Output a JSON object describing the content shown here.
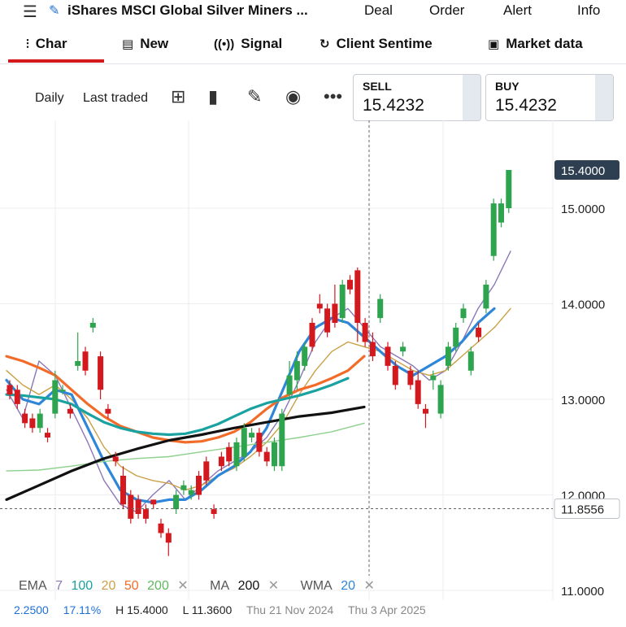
{
  "header": {
    "instrument_title": "iShares MSCI Global Silver Miners ...",
    "nav": [
      "Deal",
      "Order",
      "Alert",
      "Info"
    ]
  },
  "tabs": [
    {
      "label": "Char",
      "icon": "candlestick-icon"
    },
    {
      "label": "New",
      "icon": "newspaper-icon"
    },
    {
      "label": "Signal",
      "icon": "broadcast-icon"
    },
    {
      "label": "Client Sentime",
      "icon": "sentiment-icon"
    },
    {
      "label": "Market data",
      "icon": "clipboard-icon"
    }
  ],
  "toolbar": {
    "interval": "Daily",
    "price_type": "Last traded"
  },
  "quote": {
    "sell_label": "SELL",
    "sell_value": "15.4232",
    "buy_label": "BUY",
    "buy_value": "15.4232"
  },
  "indicators": {
    "ema_label": "EMA",
    "ema_periods": [
      "7",
      "100",
      "20",
      "50",
      "200"
    ],
    "ma_label": "MA",
    "ma_period": "200",
    "wma_label": "WMA",
    "wma_period": "20"
  },
  "stats": {
    "value": "2.2500",
    "change_pct": "17.11%",
    "high": "H 15.4000",
    "low": "L 11.3600",
    "date_a": "Thu 21 Nov 2024",
    "date_b": "Thu 3 Apr 2025"
  },
  "colors": {
    "up": "#2fa44f",
    "down": "#d3181e",
    "ema7": "#8b77b8",
    "ema100": "#19a2a0",
    "ema20": "#caa046",
    "ema50": "#f26b28",
    "ema200": "#8ed08d",
    "ma200": "#111111",
    "wma20": "#2d86d7"
  },
  "chart_data": {
    "type": "candlestick",
    "y_ticks": [
      "15.0000",
      "14.0000",
      "13.0000",
      "12.0000",
      "11.0000"
    ],
    "ylim": [
      10.8,
      15.8
    ],
    "last_price_label": "15.4000",
    "crosshair_price_label": "11.8556",
    "candles": [
      {
        "o": 13.15,
        "c": 13.05,
        "h": 13.2,
        "l": 13.0
      },
      {
        "o": 13.1,
        "c": 12.95,
        "h": 13.15,
        "l": 12.9
      },
      {
        "o": 12.85,
        "c": 12.75,
        "h": 12.9,
        "l": 12.7
      },
      {
        "o": 12.8,
        "c": 12.7,
        "h": 12.85,
        "l": 12.65
      },
      {
        "o": 12.7,
        "c": 12.85,
        "h": 12.9,
        "l": 12.65
      },
      {
        "o": 12.65,
        "c": 12.6,
        "h": 12.7,
        "l": 12.55
      },
      {
        "o": 12.85,
        "c": 13.2,
        "h": 13.3,
        "l": 12.8
      },
      {
        "o": 13.1,
        "c": 13.1,
        "h": 13.15,
        "l": 13.05
      },
      {
        "o": 12.9,
        "c": 12.85,
        "h": 12.95,
        "l": 12.8
      },
      {
        "o": 13.35,
        "c": 13.4,
        "h": 13.7,
        "l": 13.3
      },
      {
        "o": 13.5,
        "c": 13.3,
        "h": 13.55,
        "l": 13.25
      },
      {
        "o": 13.75,
        "c": 13.8,
        "h": 13.85,
        "l": 13.7
      },
      {
        "o": 13.45,
        "c": 13.1,
        "h": 13.5,
        "l": 13.0
      },
      {
        "o": 12.9,
        "c": 12.85,
        "h": 12.95,
        "l": 12.8
      },
      {
        "o": 12.4,
        "c": 12.35,
        "h": 12.45,
        "l": 12.3
      },
      {
        "o": 12.2,
        "c": 11.9,
        "h": 12.3,
        "l": 11.85
      },
      {
        "o": 12.0,
        "c": 11.75,
        "h": 12.05,
        "l": 11.7
      },
      {
        "o": 11.95,
        "c": 11.8,
        "h": 12.0,
        "l": 11.75
      },
      {
        "o": 11.85,
        "c": 11.75,
        "h": 11.9,
        "l": 11.7
      },
      {
        "o": 11.95,
        "c": 11.9,
        "h": 11.95,
        "l": 11.85
      },
      {
        "o": 11.7,
        "c": 11.6,
        "h": 11.75,
        "l": 11.55
      },
      {
        "o": 11.6,
        "c": 11.5,
        "h": 11.65,
        "l": 11.36
      },
      {
        "o": 11.85,
        "c": 12.0,
        "h": 12.05,
        "l": 11.8
      },
      {
        "o": 12.05,
        "c": 12.1,
        "h": 12.15,
        "l": 12.0
      },
      {
        "o": 12.0,
        "c": 12.05,
        "h": 12.1,
        "l": 11.95
      },
      {
        "o": 12.2,
        "c": 12.0,
        "h": 12.25,
        "l": 11.95
      },
      {
        "o": 12.35,
        "c": 12.15,
        "h": 12.4,
        "l": 12.1
      },
      {
        "o": 11.85,
        "c": 11.8,
        "h": 11.9,
        "l": 11.75
      },
      {
        "o": 12.4,
        "c": 12.3,
        "h": 12.45,
        "l": 12.25
      },
      {
        "o": 12.5,
        "c": 12.35,
        "h": 12.55,
        "l": 12.3
      },
      {
        "o": 12.3,
        "c": 12.55,
        "h": 12.6,
        "l": 12.25
      },
      {
        "o": 12.4,
        "c": 12.7,
        "h": 12.75,
        "l": 12.35
      },
      {
        "o": 12.6,
        "c": 12.65,
        "h": 12.7,
        "l": 12.55
      },
      {
        "o": 12.65,
        "c": 12.45,
        "h": 12.7,
        "l": 12.4
      },
      {
        "o": 12.45,
        "c": 12.35,
        "h": 12.5,
        "l": 12.3
      },
      {
        "o": 12.3,
        "c": 12.55,
        "h": 12.6,
        "l": 12.25
      },
      {
        "o": 12.3,
        "c": 12.85,
        "h": 12.9,
        "l": 12.25
      },
      {
        "o": 13.05,
        "c": 13.25,
        "h": 13.4,
        "l": 13.0
      },
      {
        "o": 13.2,
        "c": 13.4,
        "h": 13.5,
        "l": 13.1
      },
      {
        "o": 13.35,
        "c": 13.55,
        "h": 13.6,
        "l": 13.3
      },
      {
        "o": 13.8,
        "c": 13.55,
        "h": 13.85,
        "l": 13.5
      },
      {
        "o": 14.0,
        "c": 13.95,
        "h": 14.1,
        "l": 13.9
      },
      {
        "o": 13.95,
        "c": 13.7,
        "h": 14.0,
        "l": 13.65
      },
      {
        "o": 14.0,
        "c": 13.8,
        "h": 14.2,
        "l": 13.75
      },
      {
        "o": 13.85,
        "c": 14.2,
        "h": 14.25,
        "l": 13.8
      },
      {
        "o": 14.25,
        "c": 14.15,
        "h": 14.3,
        "l": 14.1
      },
      {
        "o": 14.35,
        "c": 13.8,
        "h": 14.38,
        "l": 13.6
      },
      {
        "o": 13.8,
        "c": 13.6,
        "h": 13.85,
        "l": 13.55
      },
      {
        "o": 13.6,
        "c": 13.45,
        "h": 13.7,
        "l": 13.4
      },
      {
        "o": 13.85,
        "c": 14.05,
        "h": 14.1,
        "l": 13.8
      },
      {
        "o": 13.55,
        "c": 13.35,
        "h": 13.6,
        "l": 13.3
      },
      {
        "o": 13.35,
        "c": 13.15,
        "h": 13.4,
        "l": 13.1
      },
      {
        "o": 13.5,
        "c": 13.55,
        "h": 13.6,
        "l": 13.45
      },
      {
        "o": 13.3,
        "c": 13.15,
        "h": 13.35,
        "l": 13.1
      },
      {
        "o": 13.2,
        "c": 12.95,
        "h": 13.3,
        "l": 12.9
      },
      {
        "o": 12.9,
        "c": 12.85,
        "h": 12.95,
        "l": 12.7
      },
      {
        "o": 13.2,
        "c": 13.25,
        "h": 13.3,
        "l": 13.1
      },
      {
        "o": 12.85,
        "c": 13.15,
        "h": 13.2,
        "l": 12.8
      },
      {
        "o": 13.35,
        "c": 13.55,
        "h": 13.6,
        "l": 13.3
      },
      {
        "o": 13.55,
        "c": 13.75,
        "h": 13.8,
        "l": 13.5
      },
      {
        "o": 13.85,
        "c": 13.95,
        "h": 14.0,
        "l": 13.8
      },
      {
        "o": 13.3,
        "c": 13.5,
        "h": 13.55,
        "l": 13.25
      },
      {
        "o": 13.75,
        "c": 13.65,
        "h": 13.8,
        "l": 13.6
      },
      {
        "o": 13.95,
        "c": 14.2,
        "h": 14.25,
        "l": 13.9
      },
      {
        "o": 14.5,
        "c": 15.05,
        "h": 15.1,
        "l": 14.45
      },
      {
        "o": 14.85,
        "c": 15.05,
        "h": 15.1,
        "l": 14.8
      },
      {
        "o": 15.0,
        "c": 15.4,
        "h": 15.4,
        "l": 14.95
      }
    ],
    "series": [
      {
        "name": "EMA 7",
        "values": [
          [
            0,
            13.1
          ],
          [
            10,
            12.8
          ],
          [
            20,
            13.4
          ],
          [
            30,
            13.25
          ],
          [
            40,
            12.9
          ],
          [
            50,
            12.55
          ],
          [
            60,
            12.15
          ],
          [
            70,
            11.9
          ],
          [
            80,
            11.82
          ],
          [
            90,
            12.0
          ],
          [
            100,
            12.15
          ],
          [
            110,
            11.95
          ],
          [
            120,
            12.1
          ],
          [
            130,
            12.25
          ],
          [
            140,
            12.35
          ],
          [
            150,
            12.45
          ],
          [
            160,
            12.6
          ],
          [
            170,
            12.85
          ],
          [
            180,
            13.2
          ],
          [
            190,
            13.6
          ],
          [
            200,
            13.85
          ],
          [
            210,
            13.95
          ],
          [
            220,
            13.75
          ],
          [
            230,
            13.55
          ],
          [
            240,
            13.45
          ],
          [
            250,
            13.35
          ],
          [
            260,
            13.2
          ],
          [
            270,
            13.3
          ],
          [
            280,
            13.6
          ],
          [
            290,
            13.95
          ],
          [
            300,
            14.2
          ],
          [
            310,
            14.55
          ]
        ]
      },
      {
        "name": "EMA 20",
        "values": [
          [
            0,
            13.3
          ],
          [
            10,
            13.15
          ],
          [
            20,
            13.05
          ],
          [
            30,
            13.15
          ],
          [
            40,
            13.0
          ],
          [
            50,
            12.8
          ],
          [
            60,
            12.5
          ],
          [
            70,
            12.3
          ],
          [
            80,
            12.2
          ],
          [
            90,
            12.15
          ],
          [
            100,
            12.12
          ],
          [
            110,
            12.05
          ],
          [
            120,
            12.1
          ],
          [
            130,
            12.2
          ],
          [
            140,
            12.28
          ],
          [
            150,
            12.4
          ],
          [
            160,
            12.55
          ],
          [
            170,
            12.75
          ],
          [
            180,
            13.05
          ],
          [
            190,
            13.3
          ],
          [
            200,
            13.5
          ],
          [
            210,
            13.6
          ],
          [
            220,
            13.55
          ],
          [
            230,
            13.5
          ],
          [
            240,
            13.4
          ],
          [
            250,
            13.3
          ],
          [
            260,
            13.25
          ],
          [
            270,
            13.3
          ],
          [
            280,
            13.45
          ],
          [
            290,
            13.6
          ],
          [
            300,
            13.75
          ],
          [
            310,
            13.95
          ]
        ]
      },
      {
        "name": "WMA 20",
        "values": [
          [
            0,
            13.2
          ],
          [
            10,
            13.0
          ],
          [
            20,
            12.95
          ],
          [
            30,
            13.1
          ],
          [
            40,
            13.05
          ],
          [
            50,
            12.7
          ],
          [
            60,
            12.35
          ],
          [
            70,
            12.05
          ],
          [
            80,
            11.95
          ],
          [
            90,
            11.92
          ],
          [
            100,
            11.95
          ],
          [
            110,
            11.95
          ],
          [
            120,
            12.05
          ],
          [
            130,
            12.2
          ],
          [
            140,
            12.3
          ],
          [
            150,
            12.45
          ],
          [
            160,
            12.7
          ],
          [
            170,
            13.1
          ],
          [
            180,
            13.5
          ],
          [
            190,
            13.75
          ],
          [
            200,
            13.85
          ],
          [
            210,
            13.8
          ],
          [
            220,
            13.65
          ],
          [
            230,
            13.5
          ],
          [
            240,
            13.35
          ],
          [
            250,
            13.25
          ],
          [
            260,
            13.35
          ],
          [
            270,
            13.45
          ],
          [
            280,
            13.6
          ],
          [
            290,
            13.8
          ],
          [
            300,
            13.95
          ]
        ]
      },
      {
        "name": "EMA 50",
        "values": [
          [
            0,
            13.45
          ],
          [
            10,
            13.4
          ],
          [
            20,
            13.33
          ],
          [
            30,
            13.25
          ],
          [
            40,
            13.1
          ],
          [
            50,
            12.95
          ],
          [
            60,
            12.82
          ],
          [
            70,
            12.72
          ],
          [
            80,
            12.66
          ],
          [
            90,
            12.6
          ],
          [
            100,
            12.57
          ],
          [
            110,
            12.55
          ],
          [
            120,
            12.56
          ],
          [
            130,
            12.6
          ],
          [
            140,
            12.66
          ],
          [
            150,
            12.76
          ],
          [
            160,
            12.9
          ],
          [
            170,
            13.02
          ],
          [
            180,
            13.1
          ],
          [
            190,
            13.15
          ],
          [
            200,
            13.22
          ],
          [
            210,
            13.3
          ],
          [
            220,
            13.45
          ]
        ]
      },
      {
        "name": "EMA 100",
        "values": [
          [
            0,
            13.05
          ],
          [
            10,
            13.04
          ],
          [
            20,
            13.02
          ],
          [
            30,
            13.0
          ],
          [
            40,
            12.95
          ],
          [
            50,
            12.85
          ],
          [
            60,
            12.76
          ],
          [
            70,
            12.7
          ],
          [
            80,
            12.66
          ],
          [
            90,
            12.64
          ],
          [
            100,
            12.63
          ],
          [
            110,
            12.64
          ],
          [
            120,
            12.68
          ],
          [
            130,
            12.74
          ],
          [
            140,
            12.82
          ],
          [
            150,
            12.9
          ],
          [
            160,
            12.96
          ],
          [
            170,
            13.0
          ],
          [
            180,
            13.04
          ],
          [
            190,
            13.09
          ],
          [
            200,
            13.15
          ],
          [
            210,
            13.22
          ]
        ]
      },
      {
        "name": "EMA 200",
        "values": [
          [
            0,
            12.25
          ],
          [
            20,
            12.26
          ],
          [
            40,
            12.3
          ],
          [
            60,
            12.35
          ],
          [
            80,
            12.38
          ],
          [
            100,
            12.4
          ],
          [
            120,
            12.45
          ],
          [
            140,
            12.5
          ],
          [
            160,
            12.55
          ],
          [
            180,
            12.6
          ],
          [
            200,
            12.66
          ],
          [
            220,
            12.75
          ]
        ]
      },
      {
        "name": "MA 200",
        "values": [
          [
            0,
            11.95
          ],
          [
            20,
            12.1
          ],
          [
            40,
            12.25
          ],
          [
            60,
            12.38
          ],
          [
            80,
            12.48
          ],
          [
            100,
            12.57
          ],
          [
            120,
            12.63
          ],
          [
            140,
            12.7
          ],
          [
            160,
            12.76
          ],
          [
            180,
            12.82
          ],
          [
            200,
            12.86
          ],
          [
            220,
            12.92
          ]
        ]
      }
    ]
  }
}
